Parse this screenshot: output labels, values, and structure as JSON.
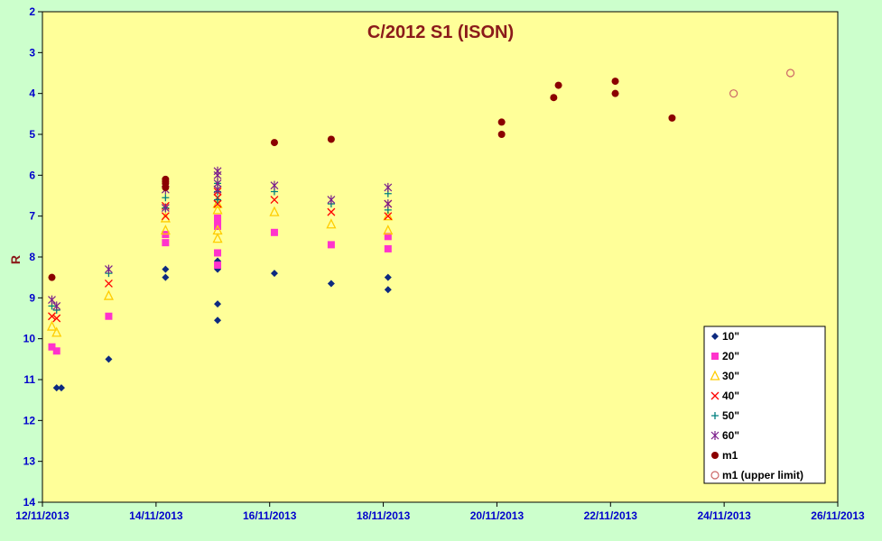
{
  "chart_data": {
    "type": "scatter",
    "title": "C/2012 S1 (ISON)",
    "ylabel": "R",
    "xlabel": "",
    "x_unit": "days",
    "x_ticks": [
      "12/11/2013",
      "14/11/2013",
      "16/11/2013",
      "18/11/2013",
      "20/11/2013",
      "22/11/2013",
      "24/11/2013",
      "26/11/2013"
    ],
    "xlim": [
      "12/11/2013",
      "26/11/2013"
    ],
    "ylim": [
      2,
      14
    ],
    "y_inverted": true,
    "y_ticks": [
      "2",
      "3",
      "4",
      "5",
      "6",
      "7",
      "8",
      "9",
      "10",
      "11",
      "12",
      "13",
      "14"
    ],
    "grid": false,
    "legend_position": "bottom-right",
    "colors": {
      "plot_background": "#ffff99",
      "page_background": "#ccffcc",
      "tick_text": "#0000cc",
      "title": "#8b1a1a"
    },
    "series": [
      {
        "name": "10\"",
        "marker": "diamond",
        "color": "#0d2a80",
        "points": [
          [
            "12/11/2013 06:00",
            11.2
          ],
          [
            "12/11/2013 08:00",
            11.2
          ],
          [
            "13/11/2013 04:00",
            10.5
          ],
          [
            "14/11/2013 04:00",
            8.3
          ],
          [
            "14/11/2013 04:00",
            8.5
          ],
          [
            "15/11/2013 02:00",
            8.1
          ],
          [
            "15/11/2013 02:00",
            8.3
          ],
          [
            "15/11/2013 02:00",
            9.15
          ],
          [
            "15/11/2013 02:00",
            9.55
          ],
          [
            "16/11/2013 02:00",
            8.4
          ],
          [
            "17/11/2013 02:00",
            8.65
          ],
          [
            "18/11/2013 02:00",
            8.5
          ],
          [
            "18/11/2013 02:00",
            8.8
          ]
        ]
      },
      {
        "name": "20\"",
        "marker": "square",
        "color": "#ff33cc",
        "points": [
          [
            "12/11/2013 04:00",
            10.2
          ],
          [
            "12/11/2013 06:00",
            10.3
          ],
          [
            "13/11/2013 04:00",
            9.45
          ],
          [
            "14/11/2013 04:00",
            7.45
          ],
          [
            "14/11/2013 04:00",
            7.65
          ],
          [
            "15/11/2013 02:00",
            7.05
          ],
          [
            "15/11/2013 02:00",
            7.1
          ],
          [
            "15/11/2013 02:00",
            7.25
          ],
          [
            "15/11/2013 02:00",
            7.9
          ],
          [
            "15/11/2013 02:00",
            8.2
          ],
          [
            "16/11/2013 02:00",
            7.4
          ],
          [
            "17/11/2013 02:00",
            7.7
          ],
          [
            "18/11/2013 02:00",
            7.5
          ],
          [
            "18/11/2013 02:00",
            7.8
          ]
        ]
      },
      {
        "name": "30\"",
        "marker": "triangle",
        "color": "#ffcc00",
        "points": [
          [
            "12/11/2013 04:00",
            9.7
          ],
          [
            "12/11/2013 06:00",
            9.85
          ],
          [
            "13/11/2013 04:00",
            8.95
          ],
          [
            "14/11/2013 04:00",
            7.05
          ],
          [
            "14/11/2013 04:00",
            7.35
          ],
          [
            "15/11/2013 02:00",
            6.7
          ],
          [
            "15/11/2013 02:00",
            6.85
          ],
          [
            "15/11/2013 02:00",
            7.35
          ],
          [
            "15/11/2013 02:00",
            7.55
          ],
          [
            "16/11/2013 02:00",
            6.9
          ],
          [
            "17/11/2013 02:00",
            7.2
          ],
          [
            "18/11/2013 02:00",
            7.0
          ],
          [
            "18/11/2013 02:00",
            7.35
          ]
        ]
      },
      {
        "name": "40\"",
        "marker": "x",
        "color": "#ff0000",
        "points": [
          [
            "12/11/2013 04:00",
            9.45
          ],
          [
            "12/11/2013 06:00",
            9.5
          ],
          [
            "13/11/2013 04:00",
            8.65
          ],
          [
            "14/11/2013 04:00",
            6.75
          ],
          [
            "14/11/2013 04:00",
            7.0
          ],
          [
            "15/11/2013 02:00",
            6.4
          ],
          [
            "15/11/2013 02:00",
            6.55
          ],
          [
            "15/11/2013 02:00",
            6.7
          ],
          [
            "16/11/2013 02:00",
            6.6
          ],
          [
            "17/11/2013 02:00",
            6.9
          ],
          [
            "18/11/2013 02:00",
            6.7
          ],
          [
            "18/11/2013 02:00",
            7.0
          ]
        ]
      },
      {
        "name": "50\"",
        "marker": "plus",
        "color": "#008080",
        "points": [
          [
            "12/11/2013 04:00",
            9.2
          ],
          [
            "12/11/2013 06:00",
            9.3
          ],
          [
            "13/11/2013 04:00",
            8.4
          ],
          [
            "14/11/2013 04:00",
            6.55
          ],
          [
            "14/11/2013 04:00",
            6.8
          ],
          [
            "15/11/2013 02:00",
            6.2
          ],
          [
            "15/11/2013 02:00",
            6.4
          ],
          [
            "15/11/2013 02:00",
            6.6
          ],
          [
            "16/11/2013 02:00",
            6.4
          ],
          [
            "17/11/2013 02:00",
            6.7
          ],
          [
            "18/11/2013 02:00",
            6.45
          ],
          [
            "18/11/2013 02:00",
            6.85
          ]
        ]
      },
      {
        "name": "60\"",
        "marker": "star",
        "color": "#7b1f8c",
        "points": [
          [
            "12/11/2013 04:00",
            9.05
          ],
          [
            "12/11/2013 06:00",
            9.2
          ],
          [
            "13/11/2013 04:00",
            8.3
          ],
          [
            "14/11/2013 04:00",
            6.35
          ],
          [
            "14/11/2013 04:00",
            6.8
          ],
          [
            "15/11/2013 02:00",
            5.9
          ],
          [
            "15/11/2013 02:00",
            6.0
          ],
          [
            "15/11/2013 02:00",
            6.2
          ],
          [
            "15/11/2013 02:00",
            6.35
          ],
          [
            "16/11/2013 02:00",
            6.25
          ],
          [
            "17/11/2013 02:00",
            6.6
          ],
          [
            "18/11/2013 02:00",
            6.3
          ],
          [
            "18/11/2013 02:00",
            6.7
          ]
        ]
      },
      {
        "name": "m1",
        "marker": "circle",
        "color": "#8b0000",
        "points": [
          [
            "12/11/2013 04:00",
            8.5
          ],
          [
            "14/11/2013 04:00",
            6.1
          ],
          [
            "14/11/2013 04:00",
            6.15
          ],
          [
            "14/11/2013 04:00",
            6.2
          ],
          [
            "14/11/2013 04:00",
            6.3
          ],
          [
            "16/11/2013 02:00",
            5.2
          ],
          [
            "17/11/2013 02:00",
            5.12
          ],
          [
            "20/11/2013 02:00",
            4.7
          ],
          [
            "20/11/2013 02:00",
            5.0
          ],
          [
            "21/11/2013 02:00",
            3.8
          ],
          [
            "21/11/2013 00:00",
            4.1
          ],
          [
            "22/11/2013 02:00",
            3.7
          ],
          [
            "22/11/2013 02:00",
            4.0
          ],
          [
            "23/11/2013 02:00",
            4.6
          ]
        ]
      },
      {
        "name": "m1 (upper limit)",
        "marker": "open-circle",
        "color": "#cc6666",
        "points": [
          [
            "24/11/2013 04:00",
            4.0
          ],
          [
            "25/11/2013 04:00",
            3.5
          ]
        ]
      }
    ]
  }
}
